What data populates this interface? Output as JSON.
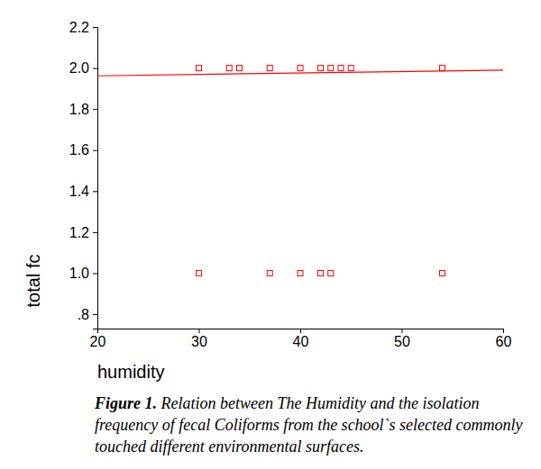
{
  "chart_data": {
    "type": "scatter",
    "title": "Figure 1.",
    "subtitle": "Relation between The Humidity and the isolation frequency of fecal Coliforms from the school`s selected commonly touched different environmental surfaces.",
    "x_label": "humidity",
    "y_label": "total fc",
    "xlim": [
      20,
      60
    ],
    "xticks": [
      20,
      30,
      40,
      50,
      60
    ],
    "ylim": [
      0.73,
      2.2
    ],
    "yticks": [
      {
        "value": 0.8,
        "label": ".8"
      },
      {
        "value": 1.0,
        "label": "1.0"
      },
      1.2,
      1.4,
      1.6,
      1.8,
      {
        "value": 2.0,
        "label": "2.0"
      },
      2.2
    ],
    "grid": false,
    "series": [
      {
        "type": "scatter",
        "marker": "square",
        "color": "#ff0000",
        "x": [
          30,
          33,
          34,
          37,
          40,
          42,
          43,
          44,
          45,
          54,
          30,
          37,
          40,
          42,
          43,
          54
        ],
        "values": [
          2,
          2,
          2,
          2,
          2,
          2,
          2,
          2,
          2,
          2,
          1,
          1,
          1,
          1,
          1,
          1
        ]
      },
      {
        "type": "line",
        "line_style": "solid",
        "color": "#ff0000",
        "x": [
          20,
          60
        ],
        "values": [
          1.962,
          1.99
        ]
      }
    ]
  }
}
